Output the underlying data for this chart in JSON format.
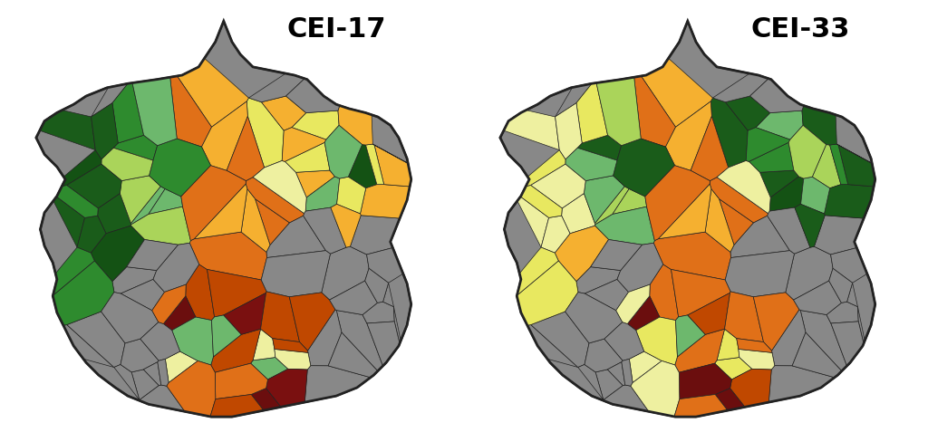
{
  "title_left": "CEI-17",
  "title_right": "CEI-33",
  "background_color": "#ffffff",
  "title_fontsize": 22,
  "title_fontweight": "bold",
  "map_bg": "#888888",
  "border_color": "#222222",
  "figsize": [
    10.24,
    4.88
  ],
  "dpi": 100,
  "colors": {
    "gray": "#888888",
    "dark_green1": "#1a5c1a",
    "dark_green2": "#1e6b1e",
    "dark_green3": "#145214",
    "medium_green": "#2e8b2e",
    "light_green": "#6db86d",
    "yellow_green": "#aad45a",
    "light_yellow": "#eef0a0",
    "yellow": "#e8e860",
    "orange_light": "#f5b030",
    "orange": "#e07018",
    "dark_orange": "#c04800",
    "brown_red": "#7a1010",
    "maroon": "#6b0e0e",
    "navy": "#1c2d50",
    "dark_teal": "#1a4040"
  }
}
